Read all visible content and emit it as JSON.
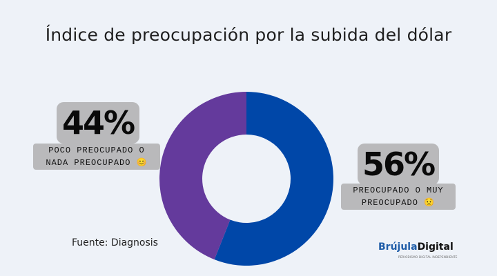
{
  "chart_data": {
    "type": "pie",
    "donut": true,
    "title": "Índice de preocupación por la subida del dólar",
    "slices": [
      {
        "label": "PREOCUPADO O MUY PREOCUPADO",
        "value": 56,
        "value_label": "56%",
        "emoji": "😟",
        "color": "#0047a8"
      },
      {
        "label": "POCO PREOCUPADO O NADA PREOCUPADO",
        "value": 44,
        "value_label": "44%",
        "emoji": "😊",
        "color": "#643a9c"
      }
    ],
    "source": "Fuente: Diagnosis"
  },
  "brand": {
    "name_main": "Brújula",
    "name_accent": "Digital",
    "tagline": "PERIODISMO DIGITAL INDEPENDIENTE"
  }
}
